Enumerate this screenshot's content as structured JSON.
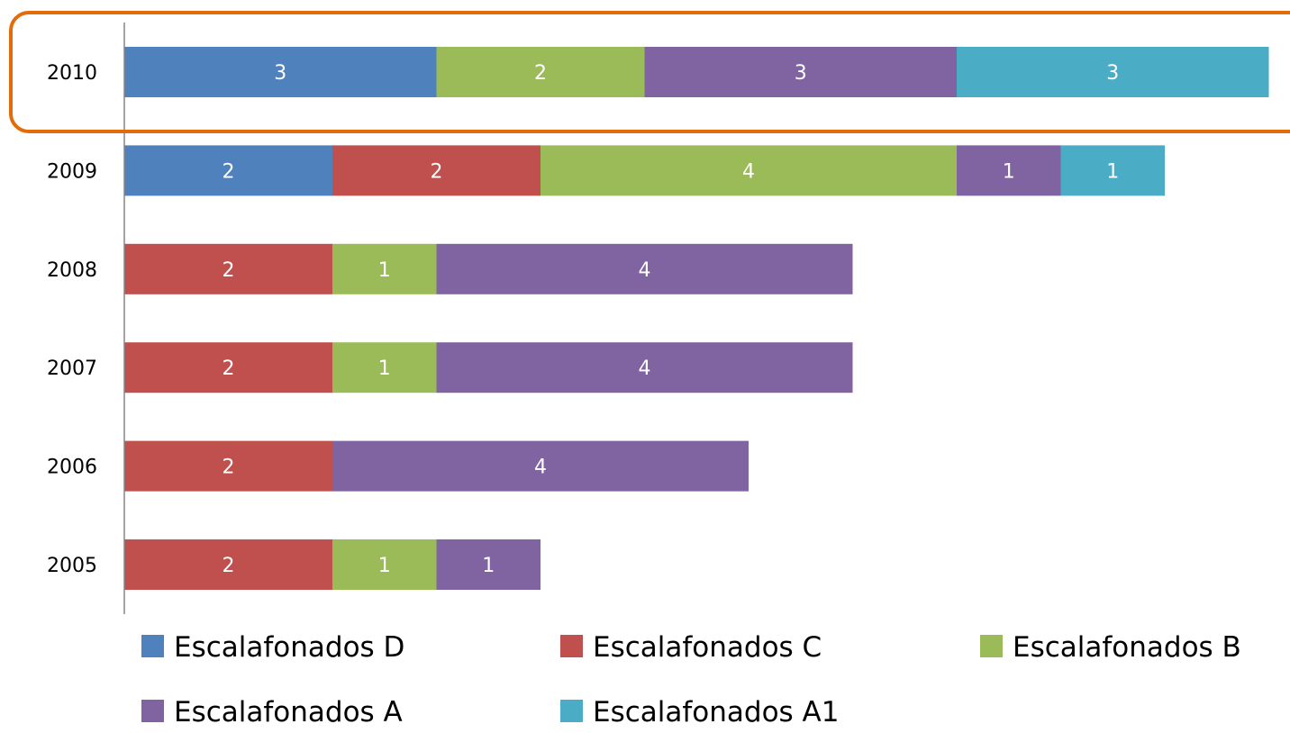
{
  "chart_data": {
    "type": "bar",
    "orientation": "horizontal",
    "stacked": true,
    "categories": [
      "2010",
      "2009",
      "2008",
      "2007",
      "2006",
      "2005"
    ],
    "series": [
      {
        "name": "Escalafonados D",
        "color": "#4F81BD",
        "values": [
          3,
          2,
          0,
          0,
          0,
          0
        ]
      },
      {
        "name": "Escalafonados C",
        "color": "#C0504D",
        "values": [
          0,
          2,
          2,
          2,
          2,
          2
        ]
      },
      {
        "name": "Escalafonados B",
        "color": "#9BBB59",
        "values": [
          2,
          4,
          1,
          1,
          0,
          1
        ]
      },
      {
        "name": "Escalafonados A",
        "color": "#8064A2",
        "values": [
          3,
          1,
          4,
          4,
          4,
          1
        ]
      },
      {
        "name": "Escalafonados A1",
        "color": "#4BACC6",
        "values": [
          3,
          1,
          0,
          0,
          0,
          0
        ]
      }
    ],
    "xlim": [
      0,
      11
    ],
    "grid": false,
    "legend_position": "bottom",
    "highlight": {
      "category": "2010",
      "color": "#E36C09"
    }
  }
}
